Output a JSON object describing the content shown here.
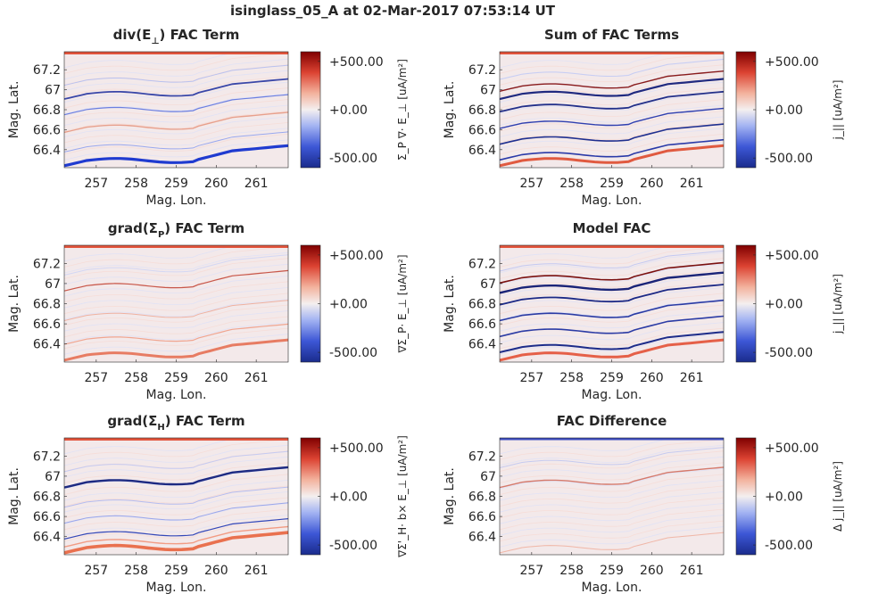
{
  "figure": {
    "suptitle": "isinglass_05_A at 02-Mar-2017 07:53:14 UT"
  },
  "colors": {
    "cmap_low": "#1a2b8c",
    "cmap_mid_low": "#8fa1f0",
    "cmap_mid": "#f2eeee",
    "cmap_mid_high": "#f08a6e",
    "cmap_high": "#7f0000"
  },
  "chart_data": [
    {
      "id": "div-e-perp",
      "type": "heatmap",
      "title_main": "div(E",
      "title_sub": "⊥",
      "title_tail": ") FAC Term",
      "xlabel": "Mag. Lon.",
      "ylabel": "Mag. Lat.",
      "xlim": [
        256.2,
        261.8
      ],
      "ylim": [
        66.22,
        67.38
      ],
      "xticks": [
        "257",
        "258",
        "259",
        "260",
        "261"
      ],
      "yticks": [
        "66.4",
        "66.6",
        "66.8",
        "67",
        "67.2"
      ],
      "clim": [
        -600,
        600
      ],
      "cticks": [
        "-500.00",
        "+0.00",
        "+500.00"
      ],
      "cbar_label": "Σ_P ∇· E_⊥ [uA/m²]"
    },
    {
      "id": "sum-fac",
      "type": "heatmap",
      "title_main": "Sum of FAC Terms",
      "title_sub": "",
      "title_tail": "",
      "xlabel": "Mag. Lon.",
      "ylabel": "Mag. Lat.",
      "xlim": [
        256.2,
        261.8
      ],
      "ylim": [
        66.22,
        67.38
      ],
      "xticks": [
        "257",
        "258",
        "259",
        "260",
        "261"
      ],
      "yticks": [
        "66.4",
        "66.6",
        "66.8",
        "67",
        "67.2"
      ],
      "clim": [
        -600,
        600
      ],
      "cticks": [
        "-500.00",
        "+0.00",
        "+500.00"
      ],
      "cbar_label": "j_|| [uA/m²]"
    },
    {
      "id": "grad-sigma-p",
      "type": "heatmap",
      "title_main": "grad(Σ",
      "title_sub": "P",
      "title_tail": ") FAC Term",
      "xlabel": "Mag. Lon.",
      "ylabel": "Mag. Lat.",
      "xlim": [
        256.2,
        261.8
      ],
      "ylim": [
        66.22,
        67.38
      ],
      "xticks": [
        "257",
        "258",
        "259",
        "260",
        "261"
      ],
      "yticks": [
        "66.4",
        "66.6",
        "66.8",
        "67",
        "67.2"
      ],
      "clim": [
        -600,
        600
      ],
      "cticks": [
        "-500.00",
        "+0.00",
        "+500.00"
      ],
      "cbar_label": "∇Σ_P· E_⊥ [uA/m²]"
    },
    {
      "id": "model-fac",
      "type": "heatmap",
      "title_main": "Model FAC",
      "title_sub": "",
      "title_tail": "",
      "xlabel": "Mag. Lon.",
      "ylabel": "Mag. Lat.",
      "xlim": [
        256.2,
        261.8
      ],
      "ylim": [
        66.22,
        67.38
      ],
      "xticks": [
        "257",
        "258",
        "259",
        "260",
        "261"
      ],
      "yticks": [
        "66.4",
        "66.6",
        "66.8",
        "67",
        "67.2"
      ],
      "clim": [
        -600,
        600
      ],
      "cticks": [
        "-500.00",
        "+0.00",
        "+500.00"
      ],
      "cbar_label": "j_|| [uA/m²]"
    },
    {
      "id": "grad-sigma-h",
      "type": "heatmap",
      "title_main": "grad(Σ",
      "title_sub": "H",
      "title_tail": ") FAC Term",
      "xlabel": "Mag. Lon.",
      "ylabel": "Mag. Lat.",
      "xlim": [
        256.2,
        261.8
      ],
      "ylim": [
        66.22,
        67.38
      ],
      "xticks": [
        "257",
        "258",
        "259",
        "260",
        "261"
      ],
      "yticks": [
        "66.4",
        "66.6",
        "66.8",
        "67",
        "67.2"
      ],
      "clim": [
        -600,
        600
      ],
      "cticks": [
        "-500.00",
        "+0.00",
        "+500.00"
      ],
      "cbar_label": "∇Σ'_H· b× E_⊥ [uA/m²]"
    },
    {
      "id": "fac-difference",
      "type": "heatmap",
      "title_main": "FAC Difference",
      "title_sub": "",
      "title_tail": "",
      "xlabel": "Mag. Lon.",
      "ylabel": "Mag. Lat.",
      "xlim": [
        256.2,
        261.8
      ],
      "ylim": [
        66.22,
        67.38
      ],
      "xticks": [
        "257",
        "258",
        "259",
        "260",
        "261"
      ],
      "yticks": [
        "66.4",
        "66.6",
        "66.8",
        "67",
        "67.2"
      ],
      "clim": [
        -600,
        600
      ],
      "cticks": [
        "-500.00",
        "+0.00",
        "+500.00"
      ],
      "cbar_label": "Δ j_|| [uA/m²]"
    }
  ]
}
